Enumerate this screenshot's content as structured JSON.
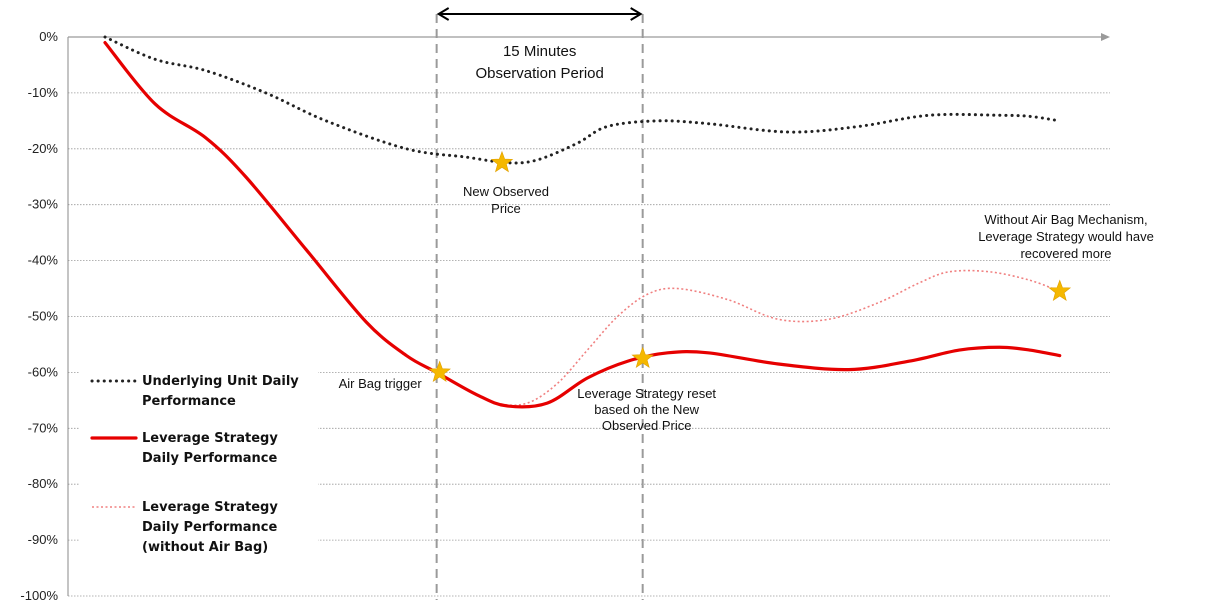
{
  "chart_data": {
    "type": "line",
    "title": "",
    "xlabel": "",
    "ylabel": "",
    "ylim": [
      -100,
      0
    ],
    "x_range": [
      0,
      100
    ],
    "y_ticks": [
      "0%",
      "-10%",
      "-20%",
      "-30%",
      "-40%",
      "-50%",
      "-60%",
      "-70%",
      "-80%",
      "-90%",
      "-100%"
    ],
    "y_tick_values": [
      0,
      -10,
      -20,
      -30,
      -40,
      -50,
      -60,
      -70,
      -80,
      -90,
      -100
    ],
    "grid": "horizontal dotted",
    "series": [
      {
        "name": "Underlying Unit Daily Performance",
        "color": "#222222",
        "style": "dotted",
        "x": [
          0,
          5,
          10,
          16,
          22,
          30,
          36,
          40,
          43,
          47,
          50,
          55,
          60,
          68,
          75,
          82,
          89,
          92,
          95
        ],
        "values": [
          0,
          -4,
          -6,
          -10,
          -15,
          -20,
          -21.5,
          -22.5,
          -22,
          -19,
          -16,
          -15,
          -15.5,
          -17,
          -16,
          -14,
          -14,
          -14.2,
          -15
        ]
      },
      {
        "name": "Leverage Strategy Daily Performance",
        "color": "#e60000",
        "style": "solid",
        "x": [
          0,
          5,
          10,
          14,
          20,
          26,
          30,
          33,
          37,
          40,
          44,
          48,
          52,
          56,
          60,
          67,
          74,
          80,
          85,
          89,
          92,
          95
        ],
        "values": [
          -1,
          -12,
          -18,
          -25,
          -38,
          -51,
          -57,
          -60,
          -64,
          -66,
          -65.5,
          -61,
          -58,
          -56.5,
          -56.5,
          -58.5,
          -59.5,
          -58,
          -56,
          -55.5,
          -56,
          -57
        ]
      },
      {
        "name": "Leverage Strategy Daily Performance (without Air Bag)",
        "color": "#f08080",
        "style": "dotted",
        "x": [
          33,
          36,
          39,
          42,
          45,
          48,
          51,
          54,
          57,
          62,
          67,
          72,
          77,
          81,
          84,
          88,
          92,
          95
        ],
        "values": [
          -60,
          -63,
          -65.5,
          -65.5,
          -62,
          -56,
          -50,
          -46,
          -45,
          -47,
          -50.5,
          -50.5,
          -47.5,
          -44,
          -42,
          -42,
          -43.5,
          -45.5
        ]
      }
    ],
    "markers": [
      {
        "label": "Air Bag trigger",
        "x": 33.3,
        "y": -60,
        "color": "#f5b800"
      },
      {
        "label": "New Observed Price",
        "x": 39.5,
        "y": -22.5,
        "color": "#f5b800"
      },
      {
        "label": "Leverage Strategy reset based on the New Observed Price",
        "x": 53.5,
        "y": -57.5,
        "color": "#f5b800"
      },
      {
        "label": "Without Air Bag Mechanism, Leverage Strategy would have recovered more",
        "x": 95,
        "y": -45.5,
        "color": "#f5b800"
      }
    ],
    "vertical_lines_x": [
      33,
      53.5
    ],
    "observation_arrow": {
      "x_start": 33,
      "x_end": 53.5,
      "label_lines": [
        "15 Minutes",
        "Observation Period"
      ]
    },
    "annotations": {
      "air_bag": "Air Bag trigger",
      "new_observed_lines": [
        "New Observed",
        "Price"
      ],
      "reset_lines": [
        "Leverage Strategy reset",
        "based on the New",
        "Observed Price"
      ],
      "without_lines": [
        "Without Air Bag Mechanism,",
        "Leverage Strategy would have",
        "recovered more"
      ]
    },
    "legend": {
      "placement": "left",
      "entries": [
        {
          "lines": [
            "Underlying Unit Daily",
            "Performance"
          ],
          "style": "dotted",
          "color": "#222222"
        },
        {
          "lines": [
            "Leverage Strategy",
            "Daily Performance"
          ],
          "style": "solid",
          "color": "#e60000"
        },
        {
          "lines": [
            "Leverage Strategy",
            "Daily Performance",
            "(without Air Bag)"
          ],
          "style": "dotted",
          "color": "#f08080"
        }
      ]
    }
  }
}
